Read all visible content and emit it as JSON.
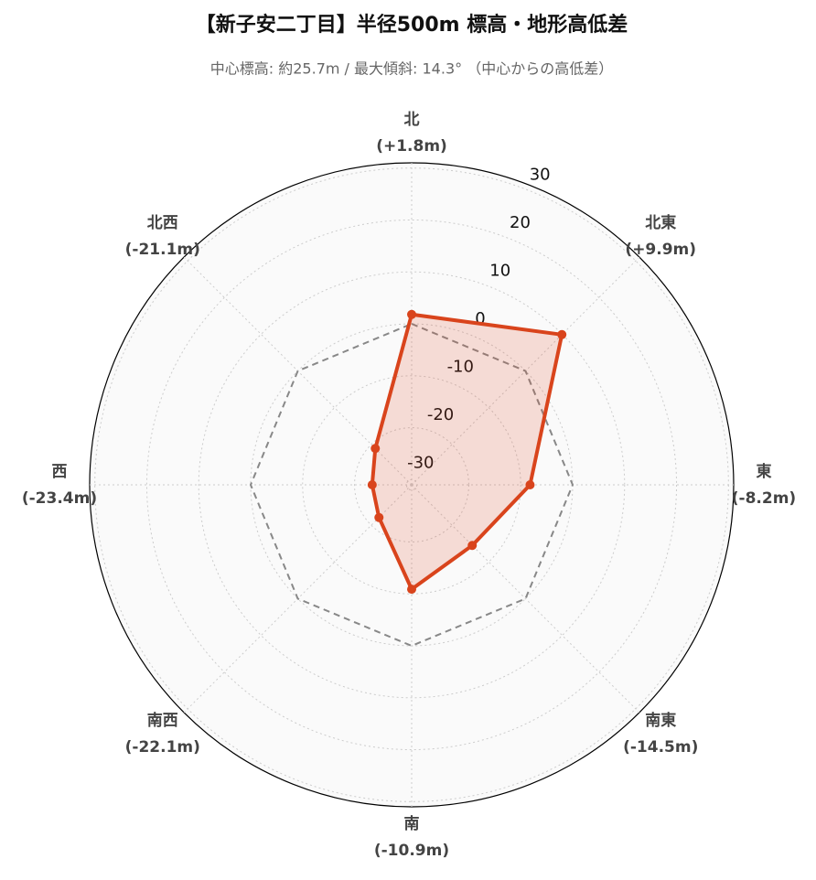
{
  "chart_data": {
    "type": "radar",
    "title": "【新子安二丁目】半径500m 標高・地形高低差",
    "subtitle": "中心標高: 約25.7m / 最大傾斜: 14.3° （中心からの高低差）",
    "categories": [
      "北",
      "北東",
      "東",
      "南東",
      "南",
      "南西",
      "西",
      "北西"
    ],
    "values": [
      1.8,
      9.9,
      -8.2,
      -14.5,
      -10.9,
      -22.1,
      -23.4,
      -21.1
    ],
    "value_labels": [
      "(+1.8m)",
      "(+9.9m)",
      "(-8.2m)",
      "(-14.5m)",
      "(-10.9m)",
      "(-22.1m)",
      "(-23.4m)",
      "(-21.1m)"
    ],
    "color": "#d9441c",
    "ylim": [
      -31,
      31
    ],
    "yticks": [
      -30,
      -20,
      -10,
      0,
      10,
      20,
      30
    ],
    "reference_line": 0,
    "grid": true
  }
}
